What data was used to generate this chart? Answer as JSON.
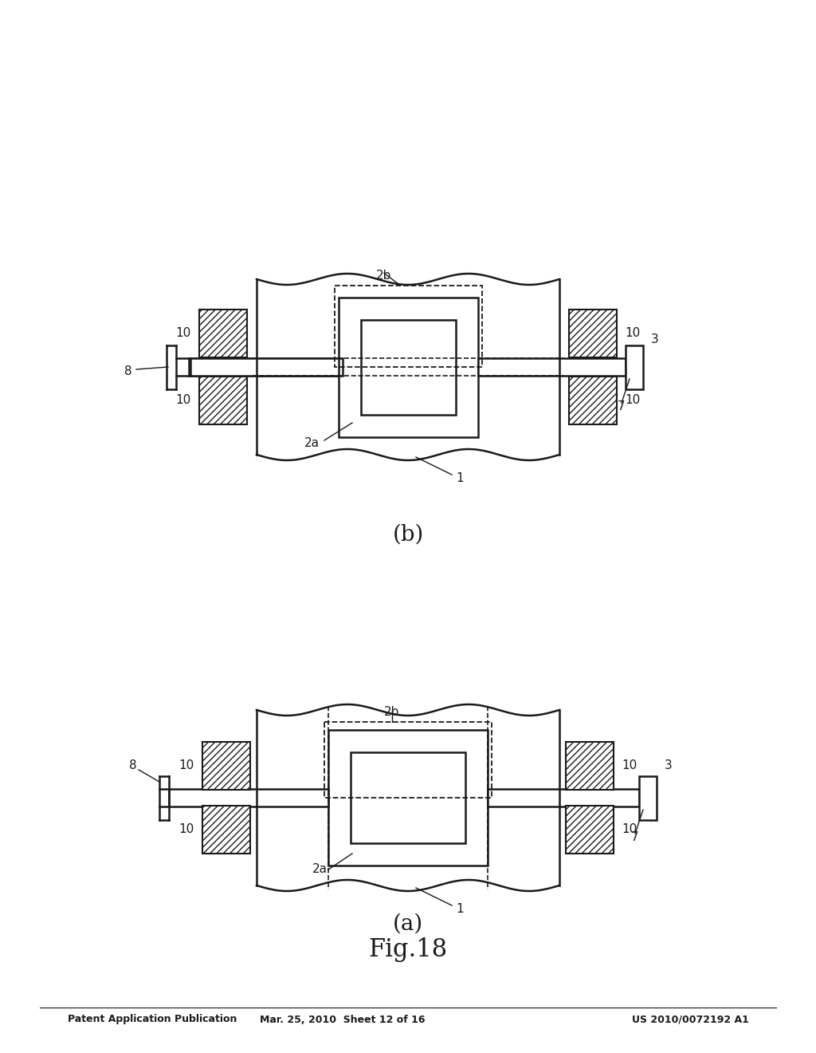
{
  "bg_color": "#ffffff",
  "line_color": "#1a1a1a",
  "header_left": "Patent Application Publication",
  "header_mid": "Mar. 25, 2010  Sheet 12 of 16",
  "header_right": "US 2010/0072192 A1",
  "fig_title": "Fig.18",
  "fig_a_label": "(a)",
  "fig_b_label": "(b)"
}
